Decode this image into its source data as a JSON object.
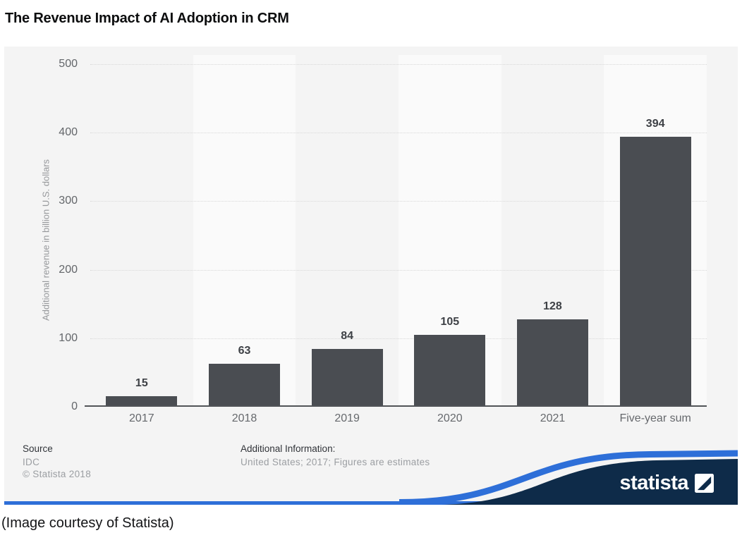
{
  "page": {
    "title": "The Revenue Impact of AI Adoption in CRM",
    "caption": "(Image courtesy of Statista)"
  },
  "chart_data": {
    "type": "bar",
    "title": "The Revenue Impact of AI Adoption in CRM",
    "categories": [
      "2017",
      "2018",
      "2019",
      "2020",
      "2021",
      "Five-year sum"
    ],
    "values": [
      15,
      63,
      84,
      105,
      128,
      394
    ],
    "xlabel": "",
    "ylabel": "Additional revenue in billion U.S. dollars",
    "ylim": [
      0,
      500
    ],
    "yticks": [
      0,
      100,
      200,
      300,
      400,
      500
    ],
    "grid": "horizontal-dotted",
    "legend": "none",
    "value_labels_shown": true
  },
  "footer": {
    "source_label": "Source",
    "source_value": "IDC",
    "copyright": "© Statista 2018",
    "additional_label": "Additional Information:",
    "additional_value": "United States; 2017; Figures are estimates"
  },
  "branding": {
    "logo_text": "statista"
  },
  "colors": {
    "bar": "#4a4d52",
    "value_label": "#3e4146",
    "accent_blue": "#2e6fd8",
    "navy": "#0e2b49",
    "card_bg": "#f4f4f4",
    "stripe_light": "#fafafa"
  }
}
